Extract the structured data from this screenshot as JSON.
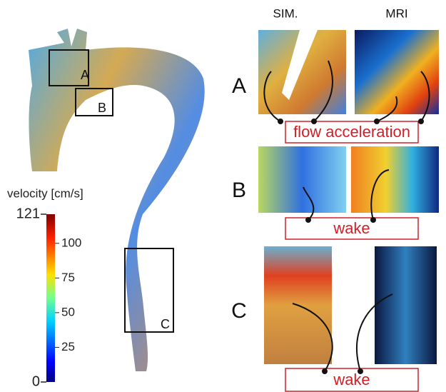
{
  "columns": [
    "SIM.",
    "MRI"
  ],
  "rows": [
    {
      "label": "A",
      "annotation": "flow acceleration"
    },
    {
      "label": "B",
      "annotation": "wake"
    },
    {
      "label": "C",
      "annotation": "wake"
    }
  ],
  "regions": [
    "A",
    "B",
    "C"
  ],
  "colorbar": {
    "title": "velocity [cm/s]",
    "min": 0,
    "max": 121,
    "ticks": [
      25,
      50,
      75,
      100
    ]
  }
}
